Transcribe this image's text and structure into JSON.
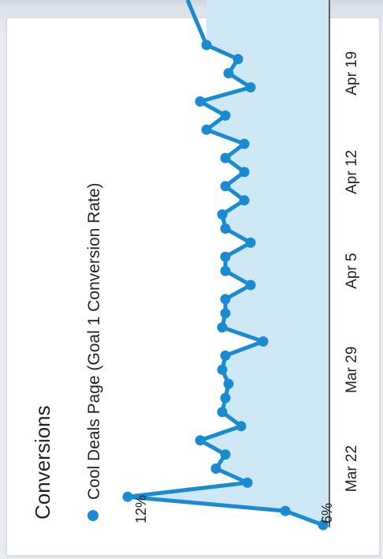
{
  "panel": {
    "title": "Conversions"
  },
  "chart_data": {
    "type": "area",
    "title": "Conversions",
    "legend": [
      "Cool Deals Page (Goal 1 Conversion Rate)"
    ],
    "series": [
      {
        "name": "Cool Deals Page (Goal 1 Conversion Rate)",
        "color": "#1a8ad1",
        "x": [
          "Mar 18",
          "Mar 19",
          "Mar 20",
          "Mar 21",
          "Mar 22",
          "Mar 23",
          "Mar 24",
          "Mar 25",
          "Mar 26",
          "Mar 27",
          "Mar 28",
          "Mar 29",
          "Mar 30",
          "Mar 31",
          "Apr 1",
          "Apr 2",
          "Apr 3",
          "Apr 4",
          "Apr 5",
          "Apr 6",
          "Apr 7",
          "Apr 8",
          "Apr 9",
          "Apr 10",
          "Apr 11",
          "Apr 12",
          "Apr 13",
          "Apr 14",
          "Apr 15",
          "Apr 16",
          "Apr 17",
          "Apr 18",
          "Apr 19",
          "Apr 20",
          "Apr 21"
        ],
        "values": [
          5.8,
          7.0,
          12.0,
          8.2,
          9.2,
          8.9,
          9.7,
          8.4,
          9.0,
          8.9,
          8.8,
          9.0,
          8.9,
          7.7,
          9.0,
          8.9,
          8.9,
          8.1,
          8.9,
          8.9,
          8.1,
          8.9,
          9.0,
          8.3,
          8.9,
          8.3,
          8.9,
          8.3,
          9.5,
          8.9,
          9.7,
          8.1,
          8.8,
          8.5,
          9.5
        ]
      }
    ],
    "y_tick_labels": [
      "12%",
      "6%"
    ],
    "x_tick_labels": [
      "Mar 22",
      "Mar 29",
      "Apr 5",
      "Apr 12",
      "Apr 19"
    ],
    "ylim": [
      5.6,
      12.6
    ],
    "grid": false,
    "legend_position": "top-left"
  }
}
